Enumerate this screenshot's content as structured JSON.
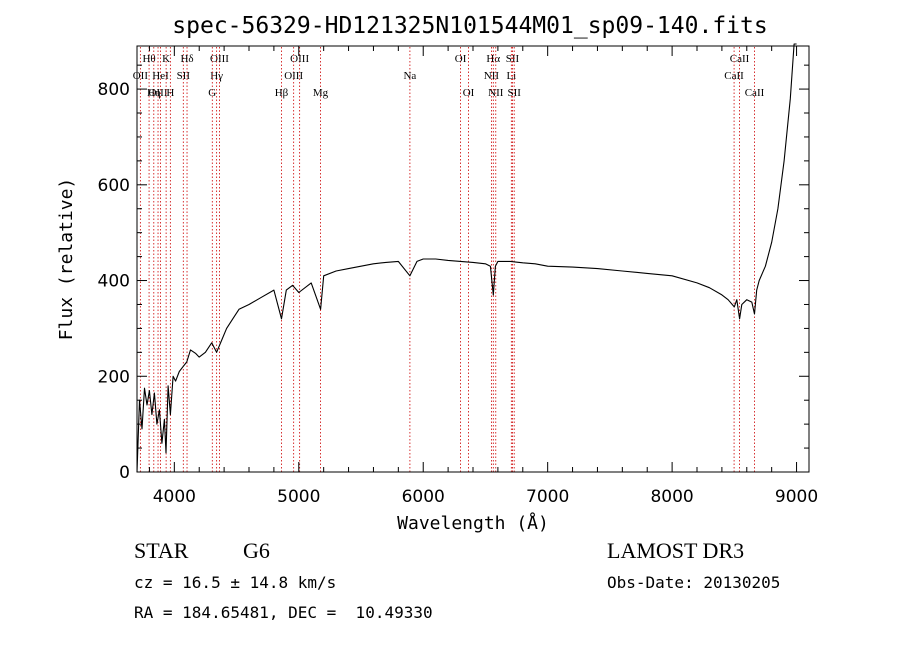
{
  "chart_data": {
    "type": "line",
    "title": "spec-56329-HD121325N101544M01_sp09-140.fits",
    "xlabel": "Wavelength (Å)",
    "ylabel": "Flux (relative)",
    "xlim": [
      3700,
      9100
    ],
    "ylim": [
      0,
      890
    ],
    "xticks": [
      4000,
      5000,
      6000,
      7000,
      8000,
      9000
    ],
    "yticks": [
      0,
      200,
      400,
      600,
      800
    ],
    "grid": false,
    "line_color": "#000000",
    "marker_color": "#cc0000",
    "series": [
      {
        "name": "spectrum",
        "x": [
          3700,
          3720,
          3740,
          3760,
          3780,
          3800,
          3820,
          3840,
          3860,
          3880,
          3900,
          3920,
          3933,
          3950,
          3968,
          3990,
          4010,
          4040,
          4070,
          4100,
          4130,
          4170,
          4200,
          4250,
          4300,
          4340,
          4380,
          4420,
          4470,
          4520,
          4600,
          4700,
          4800,
          4861,
          4900,
          4950,
          5000,
          5100,
          5175,
          5200,
          5300,
          5400,
          5500,
          5600,
          5700,
          5800,
          5893,
          5950,
          6000,
          6100,
          6200,
          6300,
          6400,
          6500,
          6540,
          6563,
          6580,
          6600,
          6700,
          6800,
          6900,
          7000,
          7200,
          7400,
          7600,
          7800,
          8000,
          8200,
          8300,
          8400,
          8450,
          8500,
          8520,
          8542,
          8560,
          8600,
          8640,
          8662,
          8680,
          8700,
          8750,
          8800,
          8850,
          8900,
          8950,
          8980,
          9000
        ],
        "y": [
          0,
          150,
          90,
          175,
          140,
          170,
          120,
          165,
          100,
          130,
          60,
          110,
          40,
          180,
          120,
          200,
          190,
          210,
          220,
          230,
          255,
          248,
          240,
          250,
          270,
          250,
          275,
          300,
          320,
          340,
          350,
          365,
          380,
          320,
          380,
          390,
          375,
          395,
          340,
          410,
          420,
          425,
          430,
          435,
          438,
          440,
          410,
          440,
          445,
          445,
          442,
          440,
          438,
          435,
          430,
          370,
          430,
          440,
          440,
          437,
          435,
          430,
          428,
          425,
          420,
          415,
          410,
          395,
          385,
          370,
          360,
          345,
          360,
          320,
          350,
          360,
          355,
          330,
          380,
          400,
          430,
          480,
          550,
          650,
          780,
          900,
          905
        ]
      }
    ],
    "lines": [
      {
        "label": "Hθ",
        "x": 3797,
        "row": 1
      },
      {
        "label": "OII",
        "x": 3727,
        "row": 2
      },
      {
        "label": "OIII",
        "x": 3869,
        "row": 3
      },
      {
        "label": "Hη",
        "x": 3835,
        "row": 3
      },
      {
        "label": "HeI",
        "x": 3889,
        "row": 2
      },
      {
        "label": "K",
        "x": 3934,
        "row": 1
      },
      {
        "label": "H",
        "x": 3968,
        "row": 3
      },
      {
        "label": "SII",
        "x": 4072,
        "row": 2
      },
      {
        "label": "Hδ",
        "x": 4102,
        "row": 1
      },
      {
        "label": "OIII",
        "x": 4363,
        "row": 1
      },
      {
        "label": "Hγ",
        "x": 4340,
        "row": 2
      },
      {
        "label": "G",
        "x": 4305,
        "row": 3
      },
      {
        "label": "Hβ",
        "x": 4861,
        "row": 3
      },
      {
        "label": "OIII",
        "x": 5007,
        "row": 1
      },
      {
        "label": "OIII",
        "x": 4959,
        "row": 2
      },
      {
        "label": "Mg",
        "x": 5175,
        "row": 3
      },
      {
        "label": "Na",
        "x": 5893,
        "row": 2
      },
      {
        "label": "OI",
        "x": 6300,
        "row": 1
      },
      {
        "label": "OI",
        "x": 6364,
        "row": 3
      },
      {
        "label": "Hα",
        "x": 6563,
        "row": 1
      },
      {
        "label": "NII",
        "x": 6548,
        "row": 2
      },
      {
        "label": "NII",
        "x": 6583,
        "row": 3
      },
      {
        "label": "SII",
        "x": 6717,
        "row": 1
      },
      {
        "label": "Li",
        "x": 6708,
        "row": 2
      },
      {
        "label": "SII",
        "x": 6731,
        "row": 3
      },
      {
        "label": "CaII",
        "x": 8542,
        "row": 1
      },
      {
        "label": "CaII",
        "x": 8498,
        "row": 2
      },
      {
        "label": "CaII",
        "x": 8662,
        "row": 3
      }
    ]
  },
  "info": {
    "object": "STAR",
    "subclass": "G6",
    "survey": "LAMOST DR3",
    "cz": "cz = 16.5 ± 14.8 km/s",
    "obs_date": "Obs-Date: 20130205",
    "coords": "RA = 184.65481, DEC =  10.49330"
  }
}
